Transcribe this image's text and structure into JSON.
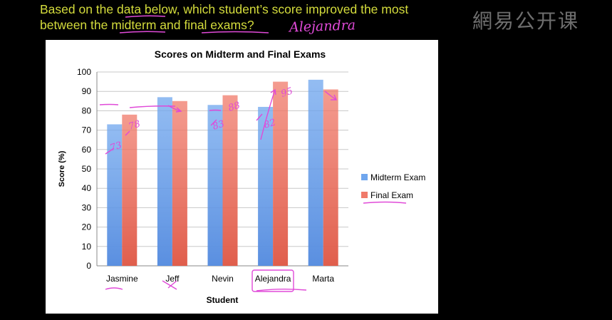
{
  "question": {
    "line1": "Based on the data below, which student’s score improved the most",
    "line2": "between the midterm and final exams?"
  },
  "handwritten_answer": "Alejandra",
  "watermark": "網易公开课",
  "colors": {
    "midterm": "#6fa6ee",
    "final": "#f07a6a",
    "question_text": "#d4dc3c",
    "annotation": "#e04ad8",
    "background": "#000000"
  },
  "chart_data": {
    "type": "bar",
    "title": "Scores on Midterm and Final Exams",
    "xlabel": "Student",
    "ylabel": "Score (%)",
    "ylim": [
      0,
      100
    ],
    "yticks": [
      "0",
      "10",
      "20",
      "30",
      "40",
      "50",
      "60",
      "70",
      "80",
      "90",
      "100"
    ],
    "grid": true,
    "legend_position": "right",
    "categories": [
      "Jasmine",
      "Jeff",
      "Nevin",
      "Alejandra",
      "Marta"
    ],
    "series": [
      {
        "name": "Midterm Exam",
        "values": [
          73,
          87,
          83,
          82,
          96
        ]
      },
      {
        "name": "Final Exam",
        "values": [
          78,
          85,
          88,
          95,
          91
        ]
      }
    ]
  },
  "annotations": {
    "labels": [
      "73",
      "78",
      "83",
      "88",
      "82",
      "95"
    ]
  }
}
